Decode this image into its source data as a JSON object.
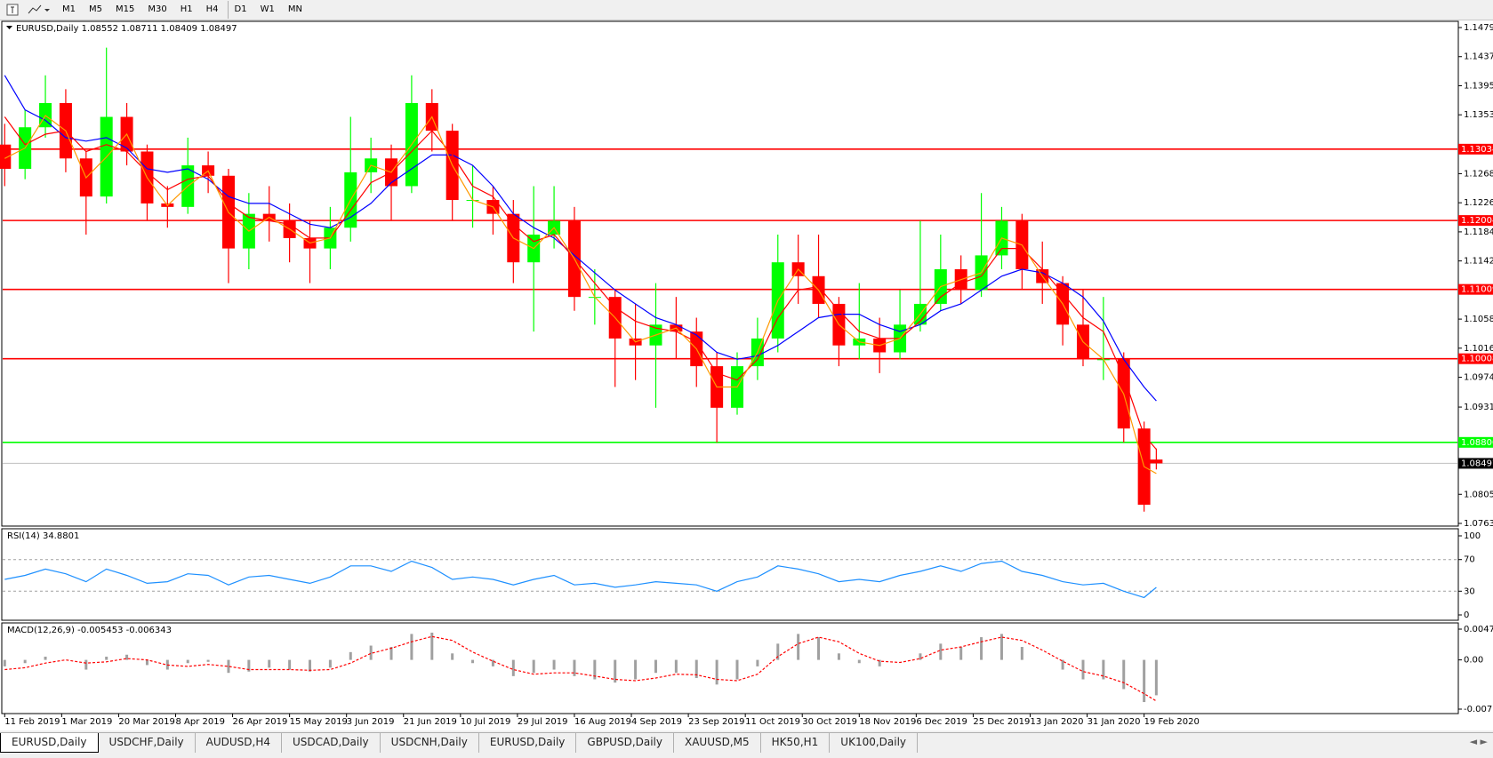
{
  "toolbar": {
    "timeframes": [
      "M1",
      "M5",
      "M15",
      "M30",
      "H1",
      "H4",
      "D1",
      "W1",
      "MN"
    ]
  },
  "tabs": {
    "items": [
      "EURUSD,Daily",
      "USDCHF,Daily",
      "AUDUSD,H4",
      "USDCAD,Daily",
      "USDCNH,Daily",
      "EURUSD,Daily",
      "GBPUSD,Daily",
      "XAUUSD,M5",
      "HK50,H1",
      "UK100,Daily"
    ],
    "active": 0
  },
  "chart_data": [
    {
      "type": "candlestick",
      "title": "EURUSD,Daily  1.08552 1.08711 1.08409 1.08497",
      "x": [
        0,
        5,
        10,
        15,
        20,
        25,
        30,
        35,
        40,
        45,
        50,
        55,
        60,
        65,
        70,
        75,
        80,
        85,
        90,
        95,
        100,
        105,
        110,
        115,
        120,
        125,
        130,
        135,
        140,
        145,
        150,
        155,
        160,
        165,
        170,
        175,
        180,
        185,
        190,
        195,
        200,
        205,
        210,
        215,
        220,
        225,
        230,
        235,
        240,
        245,
        250,
        255,
        260,
        265,
        270,
        275,
        280,
        283
      ],
      "open": [
        1.131,
        1.1275,
        1.1335,
        1.137,
        1.129,
        1.1235,
        1.135,
        1.13,
        1.1225,
        1.122,
        1.128,
        1.1265,
        1.116,
        1.121,
        1.12,
        1.1175,
        1.116,
        1.119,
        1.127,
        1.129,
        1.125,
        1.137,
        1.133,
        1.123,
        1.123,
        1.121,
        1.114,
        1.118,
        1.12,
        1.109,
        1.109,
        1.103,
        1.102,
        1.105,
        1.104,
        1.099,
        1.093,
        1.099,
        1.103,
        1.114,
        1.112,
        1.108,
        1.102,
        1.103,
        1.101,
        1.105,
        1.108,
        1.113,
        1.11,
        1.115,
        1.12,
        1.113,
        1.111,
        1.105,
        1.1,
        1.1,
        1.09,
        1.08552
      ],
      "high": [
        1.134,
        1.136,
        1.141,
        1.139,
        1.13,
        1.145,
        1.137,
        1.131,
        1.125,
        1.132,
        1.13,
        1.1275,
        1.124,
        1.125,
        1.1225,
        1.12,
        1.122,
        1.135,
        1.132,
        1.131,
        1.141,
        1.139,
        1.134,
        1.128,
        1.125,
        1.123,
        1.125,
        1.125,
        1.122,
        1.113,
        1.11,
        1.108,
        1.111,
        1.109,
        1.106,
        1.101,
        1.101,
        1.106,
        1.118,
        1.118,
        1.118,
        1.109,
        1.111,
        1.106,
        1.11,
        1.12,
        1.118,
        1.115,
        1.124,
        1.122,
        1.121,
        1.117,
        1.112,
        1.11,
        1.109,
        1.101,
        1.091,
        1.08711
      ],
      "low": [
        1.125,
        1.126,
        1.132,
        1.127,
        1.118,
        1.1225,
        1.128,
        1.12,
        1.119,
        1.121,
        1.124,
        1.111,
        1.113,
        1.117,
        1.114,
        1.111,
        1.113,
        1.117,
        1.124,
        1.12,
        1.124,
        1.13,
        1.12,
        1.119,
        1.118,
        1.111,
        1.104,
        1.116,
        1.107,
        1.105,
        1.096,
        1.097,
        1.093,
        1.1,
        1.096,
        1.088,
        1.092,
        1.097,
        1.101,
        1.108,
        1.106,
        1.099,
        1.1,
        1.098,
        1.1,
        1.104,
        1.107,
        1.108,
        1.109,
        1.113,
        1.11,
        1.108,
        1.102,
        1.099,
        1.097,
        1.088,
        1.078,
        1.08409
      ],
      "close": [
        1.1275,
        1.1335,
        1.137,
        1.129,
        1.1235,
        1.135,
        1.13,
        1.1225,
        1.122,
        1.128,
        1.1265,
        1.116,
        1.121,
        1.12,
        1.1175,
        1.116,
        1.119,
        1.127,
        1.129,
        1.125,
        1.137,
        1.133,
        1.123,
        1.123,
        1.121,
        1.114,
        1.118,
        1.12,
        1.109,
        1.109,
        1.103,
        1.102,
        1.105,
        1.104,
        1.099,
        1.093,
        1.099,
        1.103,
        1.114,
        1.112,
        1.108,
        1.102,
        1.103,
        1.101,
        1.105,
        1.108,
        1.113,
        1.11,
        1.115,
        1.12,
        1.113,
        1.111,
        1.105,
        1.1,
        1.1,
        1.09,
        1.079,
        1.08497
      ],
      "up_color": "#00ff00",
      "down_color": "#ff0000",
      "series": [
        {
          "color": "#0000ff",
          "values": [
            1.141,
            1.136,
            1.1345,
            1.132,
            1.1315,
            1.132,
            1.1305,
            1.1275,
            1.127,
            1.1275,
            1.126,
            1.1235,
            1.1225,
            1.1225,
            1.121,
            1.1195,
            1.119,
            1.1205,
            1.1225,
            1.1255,
            1.1275,
            1.1295,
            1.1295,
            1.128,
            1.125,
            1.121,
            1.119,
            1.1175,
            1.115,
            1.1125,
            1.11,
            1.108,
            1.106,
            1.105,
            1.1035,
            1.101,
            1.1,
            1.1005,
            1.102,
            1.104,
            1.106,
            1.1065,
            1.1065,
            1.105,
            1.104,
            1.105,
            1.107,
            1.108,
            1.11,
            1.112,
            1.113,
            1.1125,
            1.111,
            1.109,
            1.1055,
            1.1,
            1.096,
            1.094
          ]
        },
        {
          "color": "#ff0000",
          "values": [
            1.135,
            1.131,
            1.1325,
            1.133,
            1.13,
            1.131,
            1.13,
            1.127,
            1.1245,
            1.126,
            1.1265,
            1.1225,
            1.1205,
            1.12,
            1.1195,
            1.1175,
            1.1175,
            1.1215,
            1.1255,
            1.127,
            1.13,
            1.133,
            1.1295,
            1.125,
            1.1235,
            1.1195,
            1.117,
            1.118,
            1.1145,
            1.111,
            1.1075,
            1.1055,
            1.1045,
            1.104,
            1.1025,
            1.098,
            1.097,
            1.1,
            1.106,
            1.11,
            1.1105,
            1.107,
            1.104,
            1.103,
            1.103,
            1.1055,
            1.109,
            1.111,
            1.112,
            1.116,
            1.116,
            1.113,
            1.1095,
            1.106,
            1.104,
            1.0975,
            1.089,
            1.087
          ]
        },
        {
          "color": "#ff9900",
          "values": [
            1.129,
            1.1305,
            1.1352,
            1.133,
            1.1262,
            1.1292,
            1.1325,
            1.1262,
            1.1222,
            1.125,
            1.1272,
            1.1212,
            1.1185,
            1.1205,
            1.1188,
            1.1168,
            1.1175,
            1.123,
            1.128,
            1.127,
            1.131,
            1.135,
            1.128,
            1.123,
            1.122,
            1.1175,
            1.116,
            1.119,
            1.1145,
            1.109,
            1.106,
            1.1025,
            1.1035,
            1.1045,
            1.1015,
            1.096,
            1.096,
            1.101,
            1.1085,
            1.113,
            1.11,
            1.105,
            1.1025,
            1.102,
            1.103,
            1.1065,
            1.1105,
            1.1115,
            1.1125,
            1.1175,
            1.1165,
            1.112,
            1.108,
            1.1025,
            1.1,
            1.095,
            1.0845,
            1.0835
          ]
        }
      ],
      "levels": [
        {
          "value": 1.13034,
          "label": "1.13034",
          "color": "#ff0000"
        },
        {
          "value": 1.12004,
          "label": "1.12004",
          "color": "#ff0000"
        },
        {
          "value": 1.11009,
          "label": "1.11009",
          "color": "#ff0000"
        },
        {
          "value": 1.10008,
          "label": "1.10008",
          "color": "#ff0000"
        },
        {
          "value": 1.088,
          "label": "1.08800",
          "color": "#00ff00"
        }
      ],
      "current_price": {
        "value": 1.08497,
        "label": "1.08497",
        "color": "#000000"
      },
      "xlim": [
        -0.5,
        357
      ],
      "xticks": [
        {
          "value": 0,
          "label": "11 Feb 2019"
        },
        {
          "value": 14,
          "label": "1 Mar 2019"
        },
        {
          "value": 28,
          "label": "20 Mar 2019"
        },
        {
          "value": 42,
          "label": "8 Apr 2019"
        },
        {
          "value": 56,
          "label": "26 Apr 2019"
        },
        {
          "value": 70,
          "label": "15 May 2019"
        },
        {
          "value": 84,
          "label": "3 Jun 2019"
        },
        {
          "value": 98,
          "label": "21 Jun 2019"
        },
        {
          "value": 112,
          "label": "10 Jul 2019"
        },
        {
          "value": 126,
          "label": "29 Jul 2019"
        },
        {
          "value": 140,
          "label": "16 Aug 2019"
        },
        {
          "value": 154,
          "label": "4 Sep 2019"
        },
        {
          "value": 168,
          "label": "23 Sep 2019"
        },
        {
          "value": 182,
          "label": "11 Oct 2019"
        },
        {
          "value": 196,
          "label": "30 Oct 2019"
        },
        {
          "value": 210,
          "label": "18 Nov 2019"
        },
        {
          "value": 224,
          "label": "6 Dec 2019"
        },
        {
          "value": 238,
          "label": "25 Dec 2019"
        },
        {
          "value": 252,
          "label": "13 Jan 2020"
        },
        {
          "value": 266,
          "label": "31 Jan 2020"
        },
        {
          "value": 280,
          "label": "19 Feb 2020"
        }
      ],
      "ylim": [
        1.0763,
        1.1479
      ],
      "yticks": [
        {
          "value": 1.1479,
          "label": "1.14790"
        },
        {
          "value": 1.1437,
          "label": "1.14370"
        },
        {
          "value": 1.1395,
          "label": "1.13950"
        },
        {
          "value": 1.1353,
          "label": "1.13530"
        },
        {
          "value": 1.1268,
          "label": "1.12680"
        },
        {
          "value": 1.1226,
          "label": "1.12260"
        },
        {
          "value": 1.1184,
          "label": "1.11840"
        },
        {
          "value": 1.1142,
          "label": "1.11420"
        },
        {
          "value": 1.1058,
          "label": "1.10580"
        },
        {
          "value": 1.1016,
          "label": "1.10160"
        },
        {
          "value": 1.0974,
          "label": "1.09740"
        },
        {
          "value": 1.0931,
          "label": "1.09310"
        },
        {
          "value": 1.0805,
          "label": "1.08050"
        },
        {
          "value": 1.0763,
          "label": "1.07630"
        }
      ]
    },
    {
      "type": "line",
      "title": "RSI(14) 34.8801",
      "color": "#1e90ff",
      "values": [
        45,
        50,
        58,
        52,
        42,
        58,
        50,
        40,
        42,
        52,
        50,
        38,
        48,
        50,
        45,
        40,
        48,
        62,
        62,
        55,
        68,
        60,
        45,
        48,
        45,
        38,
        45,
        50,
        38,
        40,
        35,
        38,
        42,
        40,
        38,
        30,
        42,
        48,
        62,
        58,
        52,
        42,
        45,
        42,
        50,
        55,
        62,
        55,
        65,
        68,
        55,
        50,
        42,
        38,
        40,
        30,
        22,
        34.88
      ],
      "levels": [
        70,
        30
      ],
      "ylim": [
        0,
        100
      ],
      "yticks": [
        100,
        70,
        30,
        0
      ]
    },
    {
      "type": "macd",
      "title": "MACD(12,26,9) -0.005453 -0.006343",
      "hist_color": "#a0a0a0",
      "signal_color": "#ff0000",
      "histogram": [
        -0.001,
        -0.0005,
        0.0005,
        0.0,
        -0.0015,
        0.0005,
        0.0008,
        -0.0008,
        -0.0015,
        -0.0005,
        -0.0003,
        -0.002,
        -0.0018,
        -0.0012,
        -0.0015,
        -0.0018,
        -0.0012,
        0.0012,
        0.0022,
        0.002,
        0.004,
        0.0042,
        0.001,
        -0.0005,
        -0.001,
        -0.0025,
        -0.002,
        -0.0015,
        -0.0025,
        -0.003,
        -0.0035,
        -0.003,
        -0.002,
        -0.002,
        -0.0028,
        -0.0038,
        -0.003,
        -0.001,
        0.0025,
        0.004,
        0.0035,
        0.001,
        -0.0005,
        -0.001,
        0.0,
        0.001,
        0.0025,
        0.002,
        0.0035,
        0.004,
        0.002,
        0.0,
        -0.0015,
        -0.003,
        -0.003,
        -0.0045,
        -0.0065,
        -0.005453
      ],
      "signal": [
        -0.0015,
        -0.0012,
        -0.0005,
        0.0,
        -0.0005,
        -0.0003,
        0.0002,
        0.0,
        -0.0008,
        -0.001,
        -0.0007,
        -0.001,
        -0.0015,
        -0.0015,
        -0.0015,
        -0.0016,
        -0.0015,
        -0.0005,
        0.001,
        0.0018,
        0.0028,
        0.0036,
        0.003,
        0.0012,
        -0.0002,
        -0.0015,
        -0.0022,
        -0.002,
        -0.002,
        -0.0025,
        -0.003,
        -0.0032,
        -0.0028,
        -0.0022,
        -0.0023,
        -0.003,
        -0.0032,
        -0.0022,
        0.0005,
        0.0025,
        0.0035,
        0.0028,
        0.001,
        -0.0002,
        -0.0004,
        0.0002,
        0.0015,
        0.002,
        0.0028,
        0.0035,
        0.003,
        0.0015,
        -0.0002,
        -0.0018,
        -0.0025,
        -0.0035,
        -0.0052,
        -0.006343
      ],
      "ylim": [
        -0.007588,
        0.004738
      ],
      "yticks": [
        0.004738,
        {
          "value": 0,
          "label": "0.00"
        },
        -0.007588
      ]
    }
  ]
}
